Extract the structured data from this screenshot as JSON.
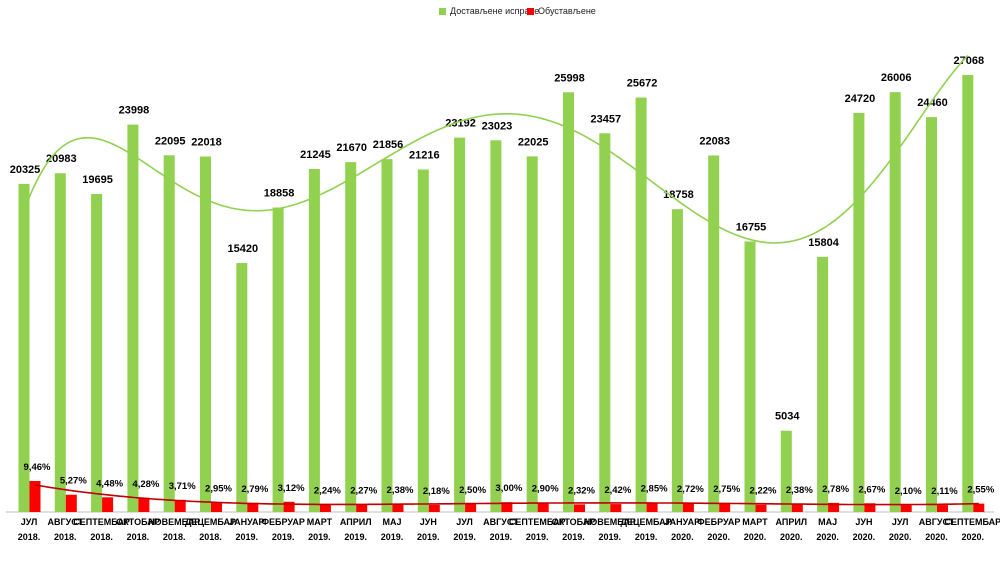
{
  "chart_data": {
    "type": "bar",
    "categories": [
      [
        "ЈУЛ",
        "2018."
      ],
      [
        "АВГУСТ",
        "2018."
      ],
      [
        "СЕПТЕМБАР",
        "2018."
      ],
      [
        "ОКТОБАР",
        "2018."
      ],
      [
        "НОВЕМБАР",
        "2018."
      ],
      [
        "ДЕЦЕМБАР",
        "2018."
      ],
      [
        "ЈАНУАР",
        "2019."
      ],
      [
        "ФЕБРУАР",
        "2019."
      ],
      [
        "МАРТ",
        "2019."
      ],
      [
        "АПРИЛ",
        "2019."
      ],
      [
        "МАЈ",
        "2019."
      ],
      [
        "ЈУН",
        "2019."
      ],
      [
        "ЈУЛ",
        "2019."
      ],
      [
        "АВГУСТ",
        "2019."
      ],
      [
        "СЕПТЕМБАР",
        "2019."
      ],
      [
        "ОКТОБАР",
        "2019."
      ],
      [
        "НОВЕМБАР",
        "2019."
      ],
      [
        "ДЕЦЕМБАР",
        "2019."
      ],
      [
        "ЈАНУАР",
        "2020."
      ],
      [
        "ФЕБРУАР",
        "2020."
      ],
      [
        "МАРТ",
        "2020."
      ],
      [
        "АПРИЛ",
        "2020."
      ],
      [
        "МАЈ",
        "2020."
      ],
      [
        "ЈУН",
        "2020."
      ],
      [
        "ЈУЛ",
        "2020."
      ],
      [
        "АВГУСТ",
        "2020."
      ],
      [
        "СЕПТЕМБАР",
        "2020."
      ]
    ],
    "series": [
      {
        "name": "Достављене исправе",
        "color": "#92D050",
        "values": [
          20325,
          20983,
          19695,
          23998,
          22095,
          22018,
          15420,
          18858,
          21245,
          21670,
          21856,
          21216,
          23192,
          23023,
          22025,
          25998,
          23457,
          25672,
          18758,
          22083,
          16755,
          5034,
          15804,
          24720,
          26006,
          24460,
          27068
        ],
        "labels": [
          "20325",
          "20983",
          "19695",
          "23998",
          "22095",
          "22018",
          "15420",
          "18858",
          "21245",
          "21670",
          "21856",
          "21216",
          "23192",
          "23023",
          "22025",
          "25998",
          "23457",
          "25672",
          "18758",
          "22083",
          "16755",
          "5034",
          "15804",
          "24720",
          "26006",
          "24460",
          "27068"
        ]
      },
      {
        "name": "Обустављене",
        "color": "#FF0000",
        "values": [
          9.46,
          5.27,
          4.48,
          4.28,
          3.71,
          2.95,
          2.79,
          3.12,
          2.24,
          2.27,
          2.38,
          2.18,
          2.5,
          3.0,
          2.9,
          2.32,
          2.42,
          2.85,
          2.72,
          2.75,
          2.22,
          2.38,
          2.78,
          2.67,
          2.1,
          2.11,
          2.55
        ],
        "labels": [
          "9,46%",
          "5,27%",
          "4,48%",
          "4,28%",
          "3,71%",
          "2,95%",
          "2,79%",
          "3,12%",
          "2,24%",
          "2,27%",
          "2,38%",
          "2,18%",
          "2,50%",
          "3,00%",
          "2,90%",
          "2,32%",
          "2,42%",
          "2,85%",
          "2,72%",
          "2,75%",
          "2,22%",
          "2,38%",
          "2,78%",
          "2,67%",
          "2,10%",
          "2,11%",
          "2,55%"
        ]
      }
    ],
    "trendlines": [
      {
        "series": "Достављене исправе",
        "kind": "polynomial",
        "color": "#92D050"
      },
      {
        "series": "Обустављене",
        "kind": "polynomial",
        "color": "#C00000"
      }
    ],
    "legend_position": "top-center",
    "grid": false
  }
}
